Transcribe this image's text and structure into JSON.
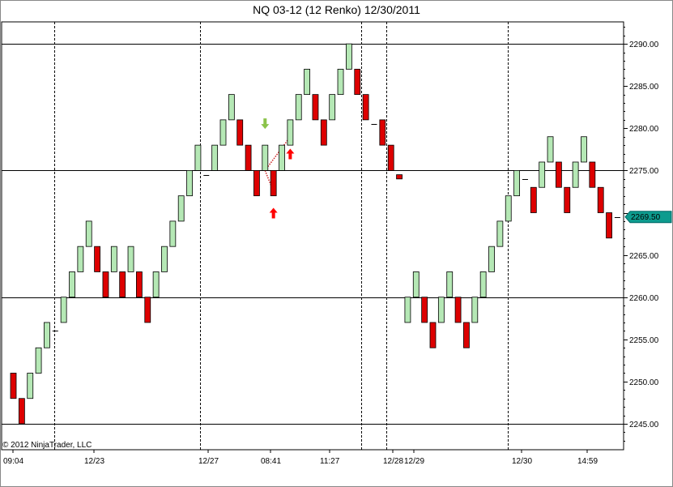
{
  "title": "NQ 03-12 (12 Renko)  12/30/2011",
  "copyright": "© 2012 NinjaTrader, LLC",
  "colors": {
    "up_fill": "#b5e8b5",
    "down_fill": "#dd0000",
    "bar_outline": "#000000",
    "price_tag": "#0d9b8e",
    "arrow_down": "#8bc34a",
    "arrow_up": "#ff0000",
    "trend_line": "#cc2222"
  },
  "chart_data": {
    "type": "renko",
    "y_axis_side": "right",
    "ylim": [
      2242.5,
      2292.5
    ],
    "y_ticks": [
      2245,
      2250,
      2255,
      2260,
      2265,
      2270,
      2275,
      2280,
      2285,
      2290
    ],
    "y_tick_labels": [
      "2245.00",
      "2250.00",
      "2255.00",
      "2260.00",
      "2265.00",
      "",
      "2275.00",
      "2280.00",
      "2285.00",
      "2290.00"
    ],
    "horizontal_lines": [
      2245,
      2260,
      2275,
      2290
    ],
    "x_labels": [
      "09:04",
      "12/23",
      "12/27",
      "08:41",
      "11:27",
      "12/28",
      "12/29",
      "12/30",
      "14:59"
    ],
    "session_breaks_after_brick": [
      5,
      23,
      43,
      46,
      61
    ],
    "current_price_label": "2269.50",
    "current_price": 2269.5,
    "bricks": [
      {
        "dir": "down",
        "open": 2251.0,
        "close": 2248.0
      },
      {
        "dir": "down",
        "open": 2248.0,
        "close": 2245.0
      },
      {
        "dir": "up",
        "open": 2248.0,
        "close": 2251.0
      },
      {
        "dir": "up",
        "open": 2251.0,
        "close": 2254.0
      },
      {
        "dir": "up",
        "open": 2254.0,
        "close": 2257.0
      },
      {
        "dir": "doji",
        "open": 2256.0,
        "close": 2256.0
      },
      {
        "dir": "up",
        "open": 2257.0,
        "close": 2260.0
      },
      {
        "dir": "up",
        "open": 2260.0,
        "close": 2263.0
      },
      {
        "dir": "up",
        "open": 2263.0,
        "close": 2266.0
      },
      {
        "dir": "up",
        "open": 2266.0,
        "close": 2269.0
      },
      {
        "dir": "down",
        "open": 2266.0,
        "close": 2263.0
      },
      {
        "dir": "down",
        "open": 2263.0,
        "close": 2260.0
      },
      {
        "dir": "up",
        "open": 2263.0,
        "close": 2266.0
      },
      {
        "dir": "down",
        "open": 2263.0,
        "close": 2260.0
      },
      {
        "dir": "up",
        "open": 2263.0,
        "close": 2266.0
      },
      {
        "dir": "down",
        "open": 2263.0,
        "close": 2260.0
      },
      {
        "dir": "down",
        "open": 2260.0,
        "close": 2257.0
      },
      {
        "dir": "up",
        "open": 2260.0,
        "close": 2263.0
      },
      {
        "dir": "up",
        "open": 2263.0,
        "close": 2266.0
      },
      {
        "dir": "up",
        "open": 2266.0,
        "close": 2269.0
      },
      {
        "dir": "up",
        "open": 2269.0,
        "close": 2272.0
      },
      {
        "dir": "up",
        "open": 2272.0,
        "close": 2275.0
      },
      {
        "dir": "up",
        "open": 2275.0,
        "close": 2278.0
      },
      {
        "dir": "doji",
        "open": 2274.5,
        "close": 2274.5
      },
      {
        "dir": "up",
        "open": 2275.0,
        "close": 2278.0
      },
      {
        "dir": "up",
        "open": 2278.0,
        "close": 2281.0
      },
      {
        "dir": "up",
        "open": 2281.0,
        "close": 2284.0
      },
      {
        "dir": "down",
        "open": 2281.0,
        "close": 2278.0
      },
      {
        "dir": "down",
        "open": 2278.0,
        "close": 2275.0
      },
      {
        "dir": "down",
        "open": 2275.0,
        "close": 2272.0
      },
      {
        "dir": "up",
        "open": 2275.0,
        "close": 2278.0
      },
      {
        "dir": "down",
        "open": 2275.0,
        "close": 2272.0
      },
      {
        "dir": "up",
        "open": 2275.0,
        "close": 2278.0
      },
      {
        "dir": "up",
        "open": 2278.0,
        "close": 2281.0
      },
      {
        "dir": "up",
        "open": 2281.0,
        "close": 2284.0
      },
      {
        "dir": "up",
        "open": 2284.0,
        "close": 2287.0
      },
      {
        "dir": "down",
        "open": 2284.0,
        "close": 2281.0
      },
      {
        "dir": "down",
        "open": 2281.0,
        "close": 2278.0
      },
      {
        "dir": "up",
        "open": 2281.0,
        "close": 2284.0
      },
      {
        "dir": "up",
        "open": 2284.0,
        "close": 2287.0
      },
      {
        "dir": "up",
        "open": 2287.0,
        "close": 2290.0
      },
      {
        "dir": "down",
        "open": 2287.0,
        "close": 2284.0
      },
      {
        "dir": "down",
        "open": 2284.0,
        "close": 2281.0
      },
      {
        "dir": "doji",
        "open": 2280.5,
        "close": 2280.5
      },
      {
        "dir": "down",
        "open": 2281.0,
        "close": 2278.0
      },
      {
        "dir": "down",
        "open": 2278.0,
        "close": 2275.0
      },
      {
        "dir": "down",
        "open": 2274.5,
        "close": 2274.0
      },
      {
        "dir": "up",
        "open": 2257.0,
        "close": 2260.0
      },
      {
        "dir": "up",
        "open": 2260.0,
        "close": 2263.0
      },
      {
        "dir": "down",
        "open": 2260.0,
        "close": 2257.0
      },
      {
        "dir": "down",
        "open": 2257.0,
        "close": 2254.0
      },
      {
        "dir": "up",
        "open": 2257.0,
        "close": 2260.0
      },
      {
        "dir": "up",
        "open": 2260.0,
        "close": 2263.0
      },
      {
        "dir": "down",
        "open": 2260.0,
        "close": 2257.0
      },
      {
        "dir": "down",
        "open": 2257.0,
        "close": 2254.0
      },
      {
        "dir": "up",
        "open": 2257.0,
        "close": 2260.0
      },
      {
        "dir": "up",
        "open": 2260.0,
        "close": 2263.0
      },
      {
        "dir": "up",
        "open": 2263.0,
        "close": 2266.0
      },
      {
        "dir": "up",
        "open": 2266.0,
        "close": 2269.0
      },
      {
        "dir": "up",
        "open": 2269.0,
        "close": 2272.0
      },
      {
        "dir": "up",
        "open": 2272.0,
        "close": 2275.0
      },
      {
        "dir": "doji",
        "open": 2274.0,
        "close": 2274.0
      },
      {
        "dir": "down",
        "open": 2273.0,
        "close": 2270.0
      },
      {
        "dir": "up",
        "open": 2273.0,
        "close": 2276.0
      },
      {
        "dir": "up",
        "open": 2276.0,
        "close": 2279.0
      },
      {
        "dir": "down",
        "open": 2276.0,
        "close": 2273.0
      },
      {
        "dir": "down",
        "open": 2273.0,
        "close": 2270.0
      },
      {
        "dir": "up",
        "open": 2273.0,
        "close": 2276.0
      },
      {
        "dir": "up",
        "open": 2276.0,
        "close": 2279.0
      },
      {
        "dir": "down",
        "open": 2276.0,
        "close": 2273.0
      },
      {
        "dir": "down",
        "open": 2273.0,
        "close": 2270.0
      },
      {
        "dir": "down",
        "open": 2270.0,
        "close": 2267.0
      },
      {
        "dir": "doji",
        "open": 2269.5,
        "close": 2269.5
      }
    ],
    "markers": [
      {
        "type": "arrow-down",
        "brick": 30,
        "price": 2280.5
      },
      {
        "type": "arrow-up",
        "brick": 31,
        "price": 2270.0
      },
      {
        "type": "arrow-up",
        "brick": 33,
        "price": 2277.0
      }
    ],
    "trend_lines": [
      {
        "from_brick": 30,
        "from_price": 2275.0,
        "to_brick": 31,
        "to_price": 2272.5
      },
      {
        "from_brick": 30,
        "from_price": 2275.0,
        "to_brick": 33,
        "to_price": 2279.0
      }
    ]
  }
}
